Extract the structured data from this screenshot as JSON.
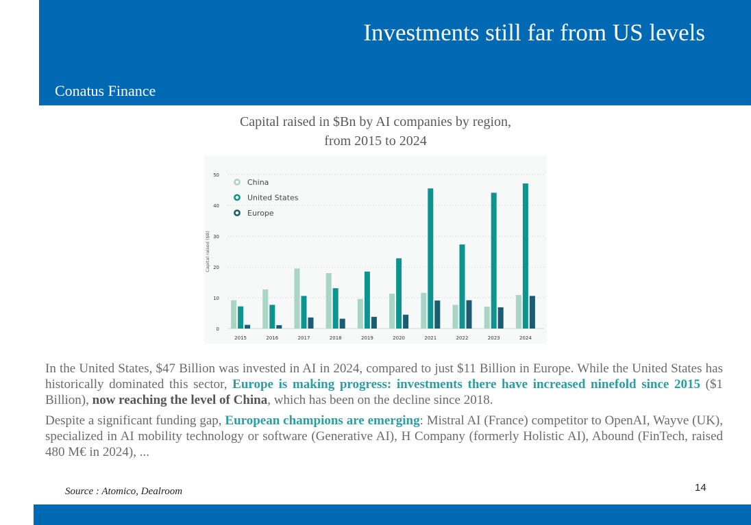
{
  "header": {
    "title": "Investments still far from US levels",
    "brand": "Conatus Finance"
  },
  "chart_title": {
    "line1": "Capital raised in $Bn by AI companies by region,",
    "line2": "from 2015 to 2024"
  },
  "chart_data": {
    "type": "bar",
    "ylabel": "Capital raised ($B)",
    "xlabel": "",
    "ylim": [
      0,
      50
    ],
    "yticks": [
      0,
      10,
      20,
      30,
      40,
      50
    ],
    "grid": true,
    "legend_position": "top-left",
    "categories": [
      "2015",
      "2016",
      "2017",
      "2018",
      "2019",
      "2020",
      "2021",
      "2022",
      "2023",
      "2024"
    ],
    "series": [
      {
        "name": "China",
        "color": "#a8d5c4",
        "values": [
          9.2,
          12.7,
          19.5,
          18.0,
          9.6,
          11.3,
          11.6,
          7.7,
          7.1,
          10.9
        ]
      },
      {
        "name": "United States",
        "color": "#0e9490",
        "values": [
          7.2,
          7.7,
          10.6,
          13.1,
          18.5,
          22.8,
          45.5,
          27.3,
          44.1,
          47.1
        ]
      },
      {
        "name": "Europe",
        "color": "#1b5c73",
        "values": [
          1.2,
          1.1,
          3.6,
          3.2,
          3.8,
          4.5,
          9.1,
          9.2,
          6.9,
          10.6
        ]
      }
    ]
  },
  "body": {
    "p1_a": "In the United States, $47 Billion was invested in AI in 2024, compared to just $11 Billion in Europe. While the United States has historically dominated this sector, ",
    "p1_b": "Europe is making progress: investments there have increased ninefold since 2015",
    "p1_c": " ($1 Billion), ",
    "p1_d": "now reaching the level of China",
    "p1_e": ", which has been on the decline since 2018.",
    "p2_a": "Despite a significant funding gap, ",
    "p2_b": "European champions are emerging",
    "p2_c": ": Mistral AI (France) competitor to OpenAI, Wayve (UK), specialized in AI mobility technology or software (Generative AI), H Company (formerly Holistic AI), Abound (FinTech, raised 480 M€ in 2024), ..."
  },
  "footer": {
    "source": "Source : Atomico, Dealroom",
    "page_number": "14"
  }
}
